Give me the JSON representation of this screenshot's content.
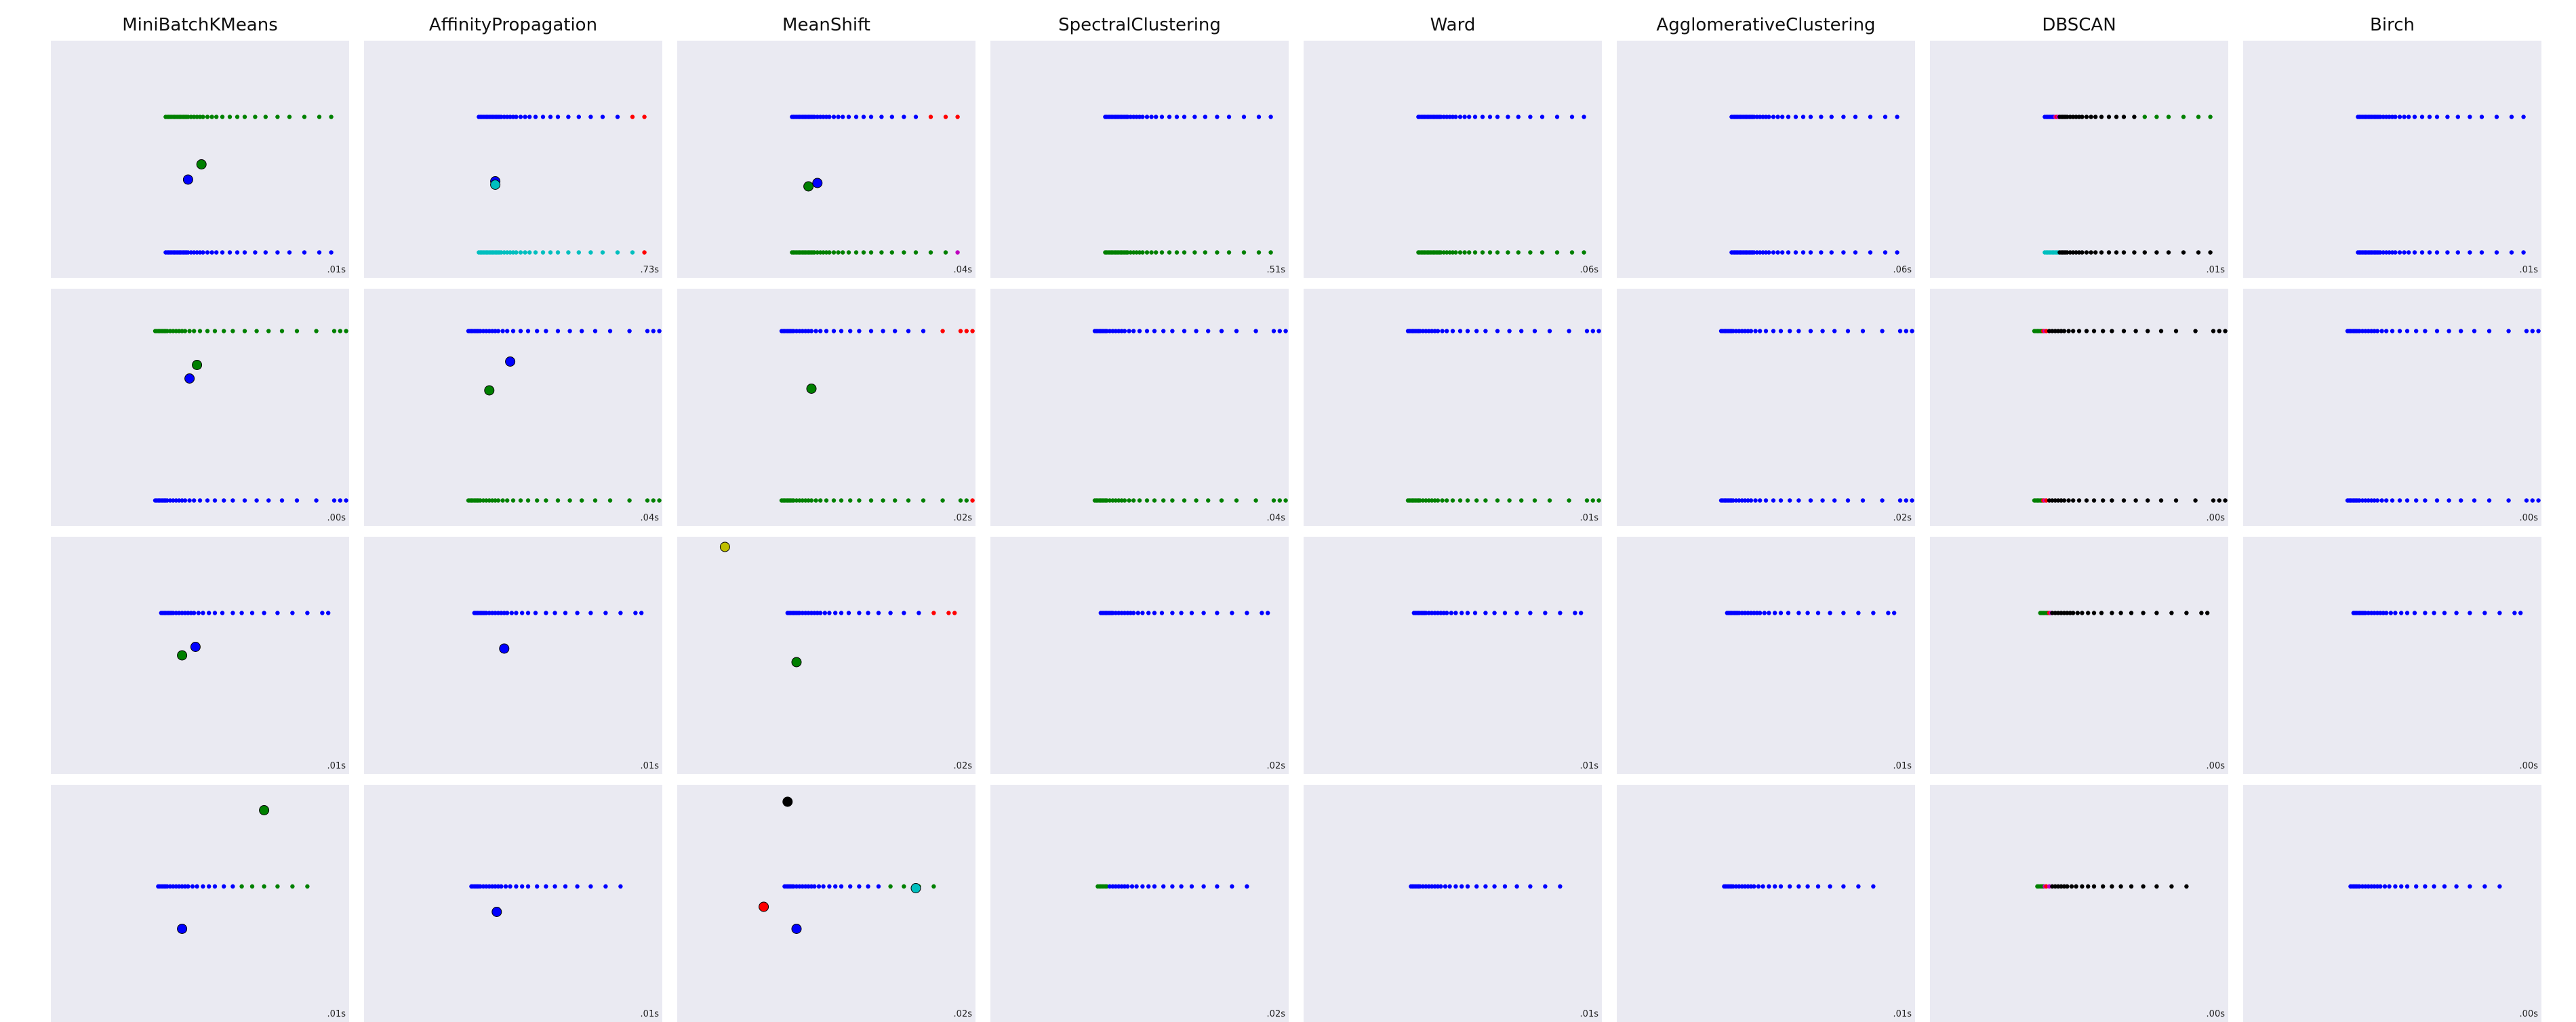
{
  "colors": {
    "b": "#0000ff",
    "g": "#008000",
    "r": "#ff0000",
    "c": "#00bfbf",
    "m": "#bf00bf",
    "y": "#bfbf00",
    "k": "#000000"
  },
  "chart_data": {
    "type": "scatter",
    "xlim": [
      -0.1,
      1.9
    ],
    "ylim": [
      -0.15,
      1.25
    ],
    "algorithms": [
      "MiniBatchKMeans",
      "AffinityPropagation",
      "MeanShift",
      "SpectralClustering",
      "Ward",
      "AgglomerativeClustering",
      "DBSCAN",
      "Birch"
    ],
    "datasets": [
      {
        "name": "dataset_1",
        "ys": [
          0.8,
          0.0
        ],
        "x_profile": [
          0.67,
          0.68,
          0.69,
          0.7,
          0.71,
          0.72,
          0.73,
          0.74,
          0.75,
          0.76,
          0.77,
          0.78,
          0.79,
          0.8,
          0.81,
          0.82,
          0.84,
          0.86,
          0.88,
          0.9,
          0.92,
          0.95,
          0.98,
          1.01,
          1.05,
          1.1,
          1.15,
          1.2,
          1.27,
          1.34,
          1.42,
          1.5,
          1.6,
          1.7,
          1.78
        ],
        "panels": [
          {
            "time": ".01s",
            "labels": [
              "g",
              "b"
            ],
            "centers": [
              {
                "x": 0.91,
                "y": 0.52,
                "c": "g"
              },
              {
                "x": 0.82,
                "y": 0.43,
                "c": "b"
              }
            ]
          },
          {
            "time": ".73s",
            "labels": [
              "b",
              "c"
            ],
            "tails": [
              [
                "r",
                2
              ],
              [
                "r",
                1
              ]
            ],
            "centers": [
              {
                "x": 0.78,
                "y": 0.42,
                "c": "b"
              },
              {
                "x": 0.78,
                "y": 0.4,
                "c": "c"
              }
            ]
          },
          {
            "time": ".04s",
            "labels": [
              "b",
              "g"
            ],
            "tails": [
              [
                "r",
                3
              ],
              [
                "m",
                1
              ]
            ],
            "centers": [
              {
                "x": 0.78,
                "y": 0.39,
                "c": "g"
              },
              {
                "x": 0.84,
                "y": 0.41,
                "c": "b"
              }
            ]
          },
          {
            "time": ".51s",
            "labels": [
              "b",
              "g"
            ],
            "centers": []
          },
          {
            "time": ".06s",
            "labels": [
              "b",
              "g"
            ],
            "centers": []
          },
          {
            "time": ".06s",
            "labels": [
              "b",
              "b"
            ],
            "centers": []
          },
          {
            "time": ".01s",
            "labels": [
              "b",
              "c"
            ],
            "dbscan": true,
            "centers": []
          },
          {
            "time": ".01s",
            "labels": [
              "b",
              "b"
            ],
            "centers": []
          }
        ]
      },
      {
        "name": "dataset_2",
        "ys": [
          1.0,
          0.0
        ],
        "x_profile": [
          0.6,
          0.61,
          0.62,
          0.63,
          0.64,
          0.65,
          0.66,
          0.67,
          0.68,
          0.7,
          0.72,
          0.74,
          0.76,
          0.78,
          0.8,
          0.83,
          0.86,
          0.9,
          0.95,
          1.0,
          1.06,
          1.12,
          1.2,
          1.28,
          1.36,
          1.45,
          1.55,
          1.68,
          1.8,
          1.84,
          1.88
        ],
        "panels": [
          {
            "time": ".00s",
            "labels": [
              "g",
              "b"
            ],
            "centers": [
              {
                "x": 0.88,
                "y": 0.8,
                "c": "g"
              },
              {
                "x": 0.83,
                "y": 0.72,
                "c": "b"
              }
            ]
          },
          {
            "time": ".04s",
            "labels": [
              "b",
              "g"
            ],
            "centers": [
              {
                "x": 0.88,
                "y": 0.82,
                "c": "b"
              },
              {
                "x": 0.74,
                "y": 0.65,
                "c": "g"
              }
            ]
          },
          {
            "time": ".02s",
            "labels": [
              "b",
              "g"
            ],
            "tails": [
              [
                "r",
                4
              ],
              [
                "r",
                1
              ]
            ],
            "centers": [
              {
                "x": 0.8,
                "y": 0.66,
                "c": "g"
              }
            ]
          },
          {
            "time": ".04s",
            "labels": [
              "b",
              "g"
            ],
            "centers": []
          },
          {
            "time": ".01s",
            "labels": [
              "b",
              "g"
            ],
            "centers": []
          },
          {
            "time": ".02s",
            "labels": [
              "b",
              "b"
            ],
            "centers": []
          },
          {
            "time": ".00s",
            "labels": [
              "k",
              "k"
            ],
            "dbscan": true,
            "centers": []
          },
          {
            "time": ".00s",
            "labels": [
              "b",
              "b"
            ],
            "centers": []
          }
        ]
      },
      {
        "name": "dataset_3",
        "ys": [
          0.8
        ],
        "x_profile": [
          0.64,
          0.65,
          0.66,
          0.67,
          0.68,
          0.69,
          0.7,
          0.71,
          0.72,
          0.74,
          0.76,
          0.78,
          0.8,
          0.82,
          0.84,
          0.86,
          0.89,
          0.92,
          0.96,
          1.0,
          1.05,
          1.12,
          1.18,
          1.25,
          1.33,
          1.42,
          1.52,
          1.62,
          1.72,
          1.76
        ],
        "panels": [
          {
            "time": ".01s",
            "labels": [
              "b"
            ],
            "centers": [
              {
                "x": 0.78,
                "y": 0.55,
                "c": "g"
              },
              {
                "x": 0.87,
                "y": 0.6,
                "c": "b"
              }
            ]
          },
          {
            "time": ".01s",
            "labels": [
              "b"
            ],
            "centers": [
              {
                "x": 0.84,
                "y": 0.59,
                "c": "b"
              }
            ]
          },
          {
            "time": ".02s",
            "labels": [
              "b"
            ],
            "tails": [
              [
                "r",
                3
              ]
            ],
            "centers": [
              {
                "x": 0.22,
                "y": 1.19,
                "c": "y"
              },
              {
                "x": 0.7,
                "y": 0.51,
                "c": "g"
              }
            ]
          },
          {
            "time": ".02s",
            "labels": [
              "b"
            ],
            "centers": []
          },
          {
            "time": ".01s",
            "labels": [
              "b"
            ],
            "centers": []
          },
          {
            "time": ".01s",
            "labels": [
              "b"
            ],
            "centers": []
          },
          {
            "time": ".00s",
            "labels": [
              "k"
            ],
            "dbscan": true,
            "centers": []
          },
          {
            "time": ".00s",
            "labels": [
              "b"
            ],
            "centers": []
          }
        ]
      },
      {
        "name": "dataset_4",
        "ys": [
          0.65
        ],
        "x_profile": [
          0.62,
          0.63,
          0.64,
          0.65,
          0.66,
          0.67,
          0.68,
          0.7,
          0.72,
          0.74,
          0.76,
          0.78,
          0.8,
          0.82,
          0.85,
          0.88,
          0.92,
          0.96,
          1.0,
          1.06,
          1.12,
          1.18,
          1.25,
          1.33,
          1.42,
          1.52,
          1.62
        ],
        "panels": [
          {
            "time": ".01s",
            "labels": [
              "b"
            ],
            "tails": [
              [
                "g",
                6
              ]
            ],
            "centers": [
              {
                "x": 1.33,
                "y": 1.1,
                "c": "g"
              },
              {
                "x": 0.78,
                "y": 0.4,
                "c": "b"
              }
            ]
          },
          {
            "time": ".01s",
            "labels": [
              "b"
            ],
            "centers": [
              {
                "x": 0.79,
                "y": 0.5,
                "c": "b"
              }
            ]
          },
          {
            "time": ".02s",
            "labels": [
              "b"
            ],
            "tails": [
              [
                "g",
                4
              ],
              [
                "c",
                1
              ]
            ],
            "centers": [
              {
                "x": 0.64,
                "y": 1.15,
                "c": "k"
              },
              {
                "x": 1.5,
                "y": 0.64,
                "c": "c"
              },
              {
                "x": 0.48,
                "y": 0.53,
                "c": "r"
              },
              {
                "x": 0.7,
                "y": 0.4,
                "c": "b"
              }
            ]
          },
          {
            "time": ".02s",
            "labels": [
              "g"
            ],
            "mixed": "b",
            "centers": []
          },
          {
            "time": ".01s",
            "labels": [
              "b"
            ],
            "centers": []
          },
          {
            "time": ".01s",
            "labels": [
              "b"
            ],
            "centers": []
          },
          {
            "time": ".00s",
            "labels": [
              "k"
            ],
            "dbscan": true,
            "centers": []
          },
          {
            "time": ".00s",
            "labels": [
              "b"
            ],
            "centers": []
          }
        ]
      }
    ]
  }
}
